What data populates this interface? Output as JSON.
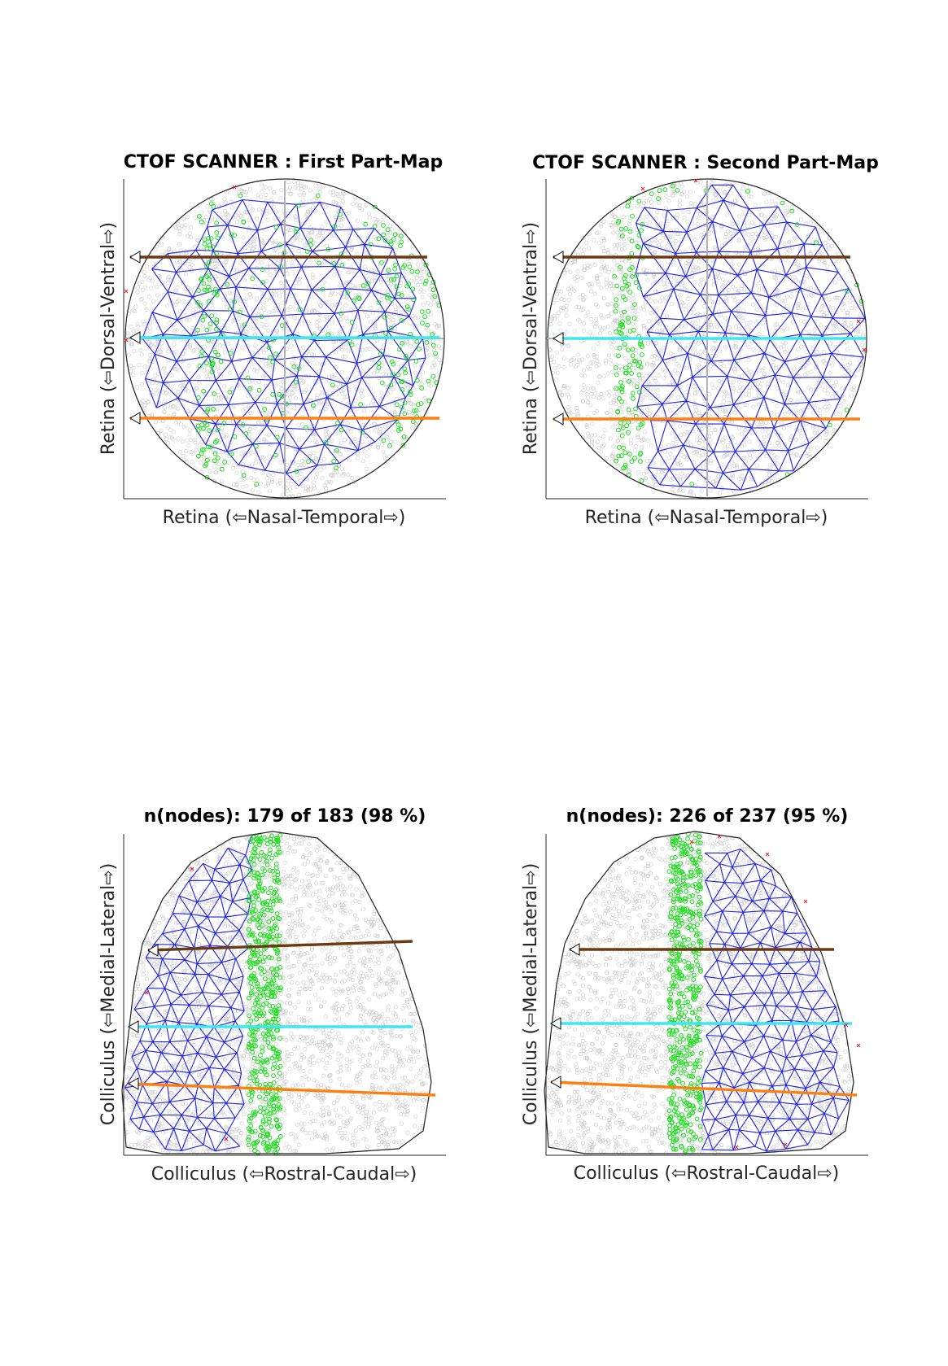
{
  "panels": [
    {
      "id": "retina-first",
      "title": "CTOF SCANNER : First Part-Map",
      "xlabel": "Retina (⇦Nasal-Temporal⇨)",
      "ylabel": "Retina (⇦Dorsal-Ventral⇨)"
    },
    {
      "id": "retina-second",
      "title": "CTOF SCANNER : Second Part-Map",
      "xlabel": "Retina (⇦Nasal-Temporal⇨)",
      "ylabel": "Retina (⇦Dorsal-Ventral⇨)"
    },
    {
      "id": "colliculus-first",
      "title": "n(nodes): 179 of 183 (98 %)",
      "xlabel": "Colliculus (⇦Rostral-Caudal⇨)",
      "ylabel": "Colliculus (⇦Medial-Lateral⇨)"
    },
    {
      "id": "colliculus-second",
      "title": "n(nodes): 226 of 237 (95 %)",
      "xlabel": "Colliculus (⇦Rostral-Caudal⇨)",
      "ylabel": "Colliculus (⇦Medial-Lateral⇨)"
    }
  ],
  "colors": {
    "mesh": "#1f1fe6",
    "scanner_points": "#22dd22",
    "background_points": "#c8c8c8",
    "outline": "#222222",
    "excluded_marks": "#e02020",
    "line_brown": "#6b3a13",
    "line_cyan": "#3ee6f0",
    "line_orange": "#ff7f0e"
  }
}
